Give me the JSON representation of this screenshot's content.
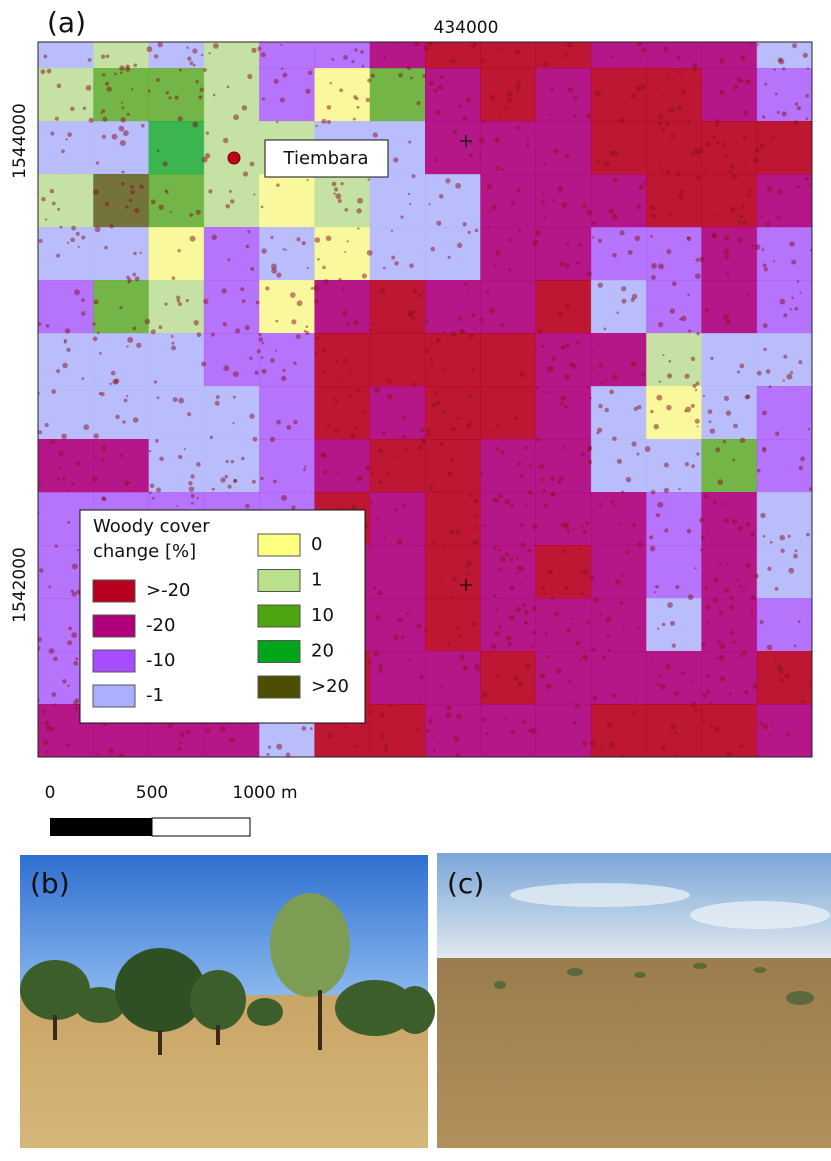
{
  "panel_a": {
    "label": "(a)",
    "x_coord": "434000",
    "y_coords": [
      "1544000",
      "1542000"
    ],
    "place": "Tiembara",
    "legend": {
      "title": [
        "Woody  cover",
        "change [%]"
      ],
      "items": [
        {
          "label": ">-20",
          "color": "#b8001e"
        },
        {
          "label": "-20",
          "color": "#b0007c"
        },
        {
          "label": "-10",
          "color": "#a64dff"
        },
        {
          "label": "-1",
          "color": "#aab0ff"
        },
        {
          "label": "0",
          "color": "#ffff80"
        },
        {
          "label": "1",
          "color": "#b9e08a"
        },
        {
          "label": "10",
          "color": "#4da60f"
        },
        {
          "label": "20",
          "color": "#00a61a"
        },
        {
          "label": ">20",
          "color": "#4d4d00"
        }
      ]
    }
  },
  "scale_bar": {
    "labels": [
      "0",
      "500",
      "1000 m"
    ]
  },
  "panel_b": {
    "label": "(b)"
  },
  "panel_c": {
    "label": "(c)"
  }
}
